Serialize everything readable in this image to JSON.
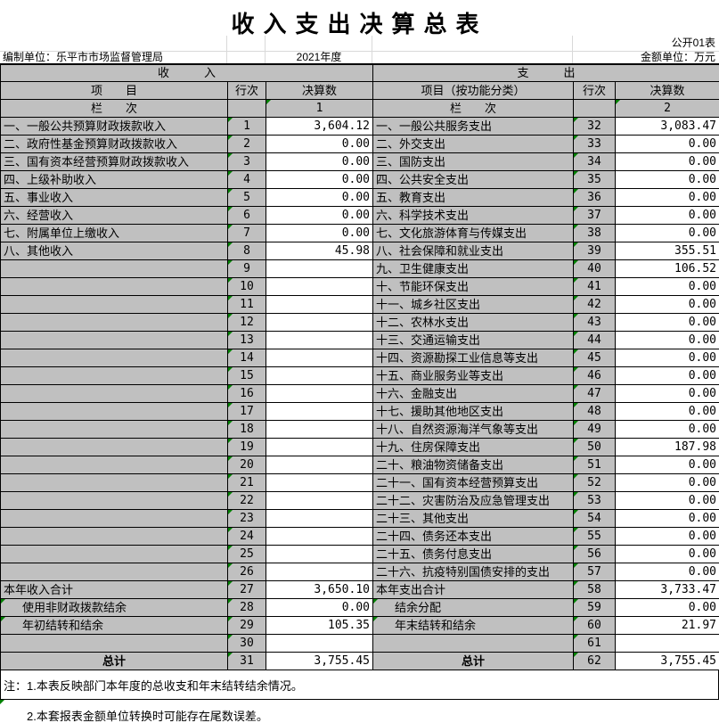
{
  "title": "收入支出决算总表",
  "meta": {
    "sheet_label": "公开01表",
    "prepared_by": "编制单位：乐平市市场监督管理局",
    "year": "2021年度",
    "unit": "金额单位：万元"
  },
  "income": {
    "banner": "收　　　入",
    "headers": {
      "item": "项　　目",
      "row_no": "行次",
      "amount": "决算数"
    },
    "column_row": {
      "label": "栏　　次",
      "col_no": "1"
    },
    "rows": [
      {
        "label": "一、一般公共预算财政拨款收入",
        "no": "1",
        "value": "3,604.12"
      },
      {
        "label": "二、政府性基金预算财政拨款收入",
        "no": "2",
        "value": "0.00"
      },
      {
        "label": "三、国有资本经营预算财政拨款收入",
        "no": "3",
        "value": "0.00"
      },
      {
        "label": "四、上级补助收入",
        "no": "4",
        "value": "0.00"
      },
      {
        "label": "五、事业收入",
        "no": "5",
        "value": "0.00"
      },
      {
        "label": "六、经营收入",
        "no": "6",
        "value": "0.00"
      },
      {
        "label": "七、附属单位上缴收入",
        "no": "7",
        "value": "0.00"
      },
      {
        "label": "八、其他收入",
        "no": "8",
        "value": "45.98"
      },
      {
        "label": "",
        "no": "9",
        "value": ""
      },
      {
        "label": "",
        "no": "10",
        "value": ""
      },
      {
        "label": "",
        "no": "11",
        "value": ""
      },
      {
        "label": "",
        "no": "12",
        "value": ""
      },
      {
        "label": "",
        "no": "13",
        "value": ""
      },
      {
        "label": "",
        "no": "14",
        "value": ""
      },
      {
        "label": "",
        "no": "15",
        "value": ""
      },
      {
        "label": "",
        "no": "16",
        "value": ""
      },
      {
        "label": "",
        "no": "17",
        "value": ""
      },
      {
        "label": "",
        "no": "18",
        "value": ""
      },
      {
        "label": "",
        "no": "19",
        "value": ""
      },
      {
        "label": "",
        "no": "20",
        "value": ""
      },
      {
        "label": "",
        "no": "21",
        "value": ""
      },
      {
        "label": "",
        "no": "22",
        "value": ""
      },
      {
        "label": "",
        "no": "23",
        "value": ""
      },
      {
        "label": "",
        "no": "24",
        "value": ""
      },
      {
        "label": "",
        "no": "25",
        "value": ""
      },
      {
        "label": "",
        "no": "26",
        "value": ""
      },
      {
        "label": "本年收入合计",
        "no": "27",
        "value": "3,650.10"
      },
      {
        "label": "使用非财政拨款结余",
        "no": "28",
        "value": "0.00",
        "indent": true,
        "lm": true
      },
      {
        "label": "年初结转和结余",
        "no": "29",
        "value": "105.35",
        "indent": true,
        "lm": true
      },
      {
        "label": "",
        "no": "30",
        "value": ""
      },
      {
        "label": "总计",
        "no": "31",
        "value": "3,755.45",
        "total": true
      }
    ]
  },
  "expense": {
    "banner": "支　　　出",
    "headers": {
      "item": "项目（按功能分类）",
      "row_no": "行次",
      "amount": "决算数"
    },
    "column_row": {
      "label": "栏　　次",
      "col_no": "2"
    },
    "rows": [
      {
        "label": "一、一般公共服务支出",
        "no": "32",
        "value": "3,083.47"
      },
      {
        "label": "二、外交支出",
        "no": "33",
        "value": "0.00"
      },
      {
        "label": "三、国防支出",
        "no": "34",
        "value": "0.00"
      },
      {
        "label": "四、公共安全支出",
        "no": "35",
        "value": "0.00"
      },
      {
        "label": "五、教育支出",
        "no": "36",
        "value": "0.00"
      },
      {
        "label": "六、科学技术支出",
        "no": "37",
        "value": "0.00"
      },
      {
        "label": "七、文化旅游体育与传媒支出",
        "no": "38",
        "value": "0.00"
      },
      {
        "label": "八、社会保障和就业支出",
        "no": "39",
        "value": "355.51"
      },
      {
        "label": "九、卫生健康支出",
        "no": "40",
        "value": "106.52"
      },
      {
        "label": "十、节能环保支出",
        "no": "41",
        "value": "0.00"
      },
      {
        "label": "十一、城乡社区支出",
        "no": "42",
        "value": "0.00"
      },
      {
        "label": "十二、农林水支出",
        "no": "43",
        "value": "0.00"
      },
      {
        "label": "十三、交通运输支出",
        "no": "44",
        "value": "0.00"
      },
      {
        "label": "十四、资源勘探工业信息等支出",
        "no": "45",
        "value": "0.00"
      },
      {
        "label": "十五、商业服务业等支出",
        "no": "46",
        "value": "0.00"
      },
      {
        "label": "十六、金融支出",
        "no": "47",
        "value": "0.00"
      },
      {
        "label": "十七、援助其他地区支出",
        "no": "48",
        "value": "0.00"
      },
      {
        "label": "十八、自然资源海洋气象等支出",
        "no": "49",
        "value": "0.00"
      },
      {
        "label": "十九、住房保障支出",
        "no": "50",
        "value": "187.98"
      },
      {
        "label": "二十、粮油物资储备支出",
        "no": "51",
        "value": "0.00"
      },
      {
        "label": "二十一、国有资本经营预算支出",
        "no": "52",
        "value": "0.00"
      },
      {
        "label": "二十二、灾害防治及应急管理支出",
        "no": "53",
        "value": "0.00"
      },
      {
        "label": "二十三、其他支出",
        "no": "54",
        "value": "0.00"
      },
      {
        "label": "二十四、债务还本支出",
        "no": "55",
        "value": "0.00"
      },
      {
        "label": "二十五、债务付息支出",
        "no": "56",
        "value": "0.00"
      },
      {
        "label": "二十六、抗疫特别国债安排的支出",
        "no": "57",
        "value": "0.00"
      },
      {
        "label": "本年支出合计",
        "no": "58",
        "value": "3,733.47"
      },
      {
        "label": "结余分配",
        "no": "59",
        "value": "0.00",
        "indent": true,
        "lm": true
      },
      {
        "label": "年末结转和结余",
        "no": "60",
        "value": "21.97",
        "indent": true,
        "lm": true
      },
      {
        "label": "",
        "no": "61",
        "value": ""
      },
      {
        "label": "总计",
        "no": "62",
        "value": "3,755.45",
        "total": true
      }
    ]
  },
  "notes": {
    "line1": "注：1.本表反映部门本年度的总收支和年末结转结余情况。",
    "line2": "2.本套报表金额单位转换时可能存在尾数误差。"
  }
}
